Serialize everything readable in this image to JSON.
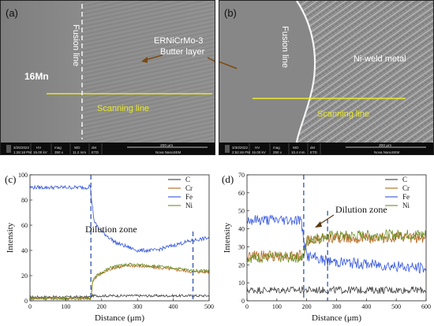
{
  "panels": {
    "a": {
      "label": "(a)",
      "annotations": {
        "fusion_line": "Fusion line",
        "filler_line1": "ERNiCrMo-3",
        "filler_line2": "Butter layer",
        "base_metal": "16Mn",
        "scanning_line": "Scanning line"
      },
      "databar": {
        "date": "3/25/2022",
        "time": "1:28:18 PM",
        "hv_label": "HV",
        "hv": "15.00 kV",
        "mag_label": "mag",
        "mag": "350 x",
        "wd_label": "WD",
        "wd": "11.2 mm",
        "det_label": "det",
        "det": "ETD",
        "scalebar": "200 μm",
        "instrument": "Nova NanoSEM"
      }
    },
    "b": {
      "label": "(b)",
      "annotations": {
        "fusion_line": "Fusion line",
        "weld_metal": "Ni-weld metal",
        "scanning_line": "Scanning line"
      },
      "databar": {
        "date": "3/30/2022",
        "time": "2:52:46 PM",
        "hv_label": "HV",
        "hv": "15.00 kV",
        "mag_label": "mag",
        "mag": "250 x",
        "wd_label": "WD",
        "wd": "10.4 mm",
        "det_label": "det",
        "det": "ETD",
        "scalebar": "300 μm",
        "instrument": "Nova NanoSEM"
      }
    }
  },
  "chart_data": [
    {
      "panel": "(c)",
      "type": "line",
      "xlabel": "Distance (μm)",
      "ylabel": "Intensity",
      "xlim": [
        0,
        500
      ],
      "ylim": [
        0,
        100
      ],
      "xticks": [
        0,
        100,
        200,
        300,
        400,
        500
      ],
      "yticks": [
        0,
        20,
        40,
        60,
        80,
        100
      ],
      "annotation": "Dilution zone",
      "dashed_lines_x": [
        170,
        455
      ],
      "legend": [
        "C",
        "Cr",
        "Fe",
        "Ni"
      ],
      "legend_placement": "top-right",
      "colors": {
        "C": "#404040",
        "Cr": "#b5651d",
        "Fe": "#3355dd",
        "Ni": "#6b8e23"
      },
      "series": [
        {
          "name": "C",
          "x": [
            0,
            170,
            171,
            500
          ],
          "y": [
            3,
            3,
            4,
            4
          ],
          "noise": 1
        },
        {
          "name": "Cr",
          "x": [
            0,
            170,
            175,
            190,
            230,
            280,
            330,
            400,
            455,
            500
          ],
          "y": [
            2,
            2,
            15,
            20,
            26,
            28,
            27,
            25,
            23,
            23
          ],
          "noise": 1.2
        },
        {
          "name": "Fe",
          "x": [
            0,
            160,
            168,
            172,
            180,
            200,
            240,
            300,
            350,
            400,
            455,
            500
          ],
          "y": [
            90,
            90,
            92,
            80,
            62,
            55,
            46,
            40,
            40,
            44,
            48,
            50
          ],
          "noise": 1.5
        },
        {
          "name": "Ni",
          "x": [
            0,
            170,
            175,
            190,
            230,
            280,
            330,
            400,
            455,
            500
          ],
          "y": [
            2,
            2,
            16,
            21,
            27,
            29,
            28,
            26,
            24,
            24
          ],
          "noise": 1.2
        }
      ]
    },
    {
      "panel": "(d)",
      "type": "line",
      "xlabel": "Distance (μm)",
      "ylabel": "Intensity",
      "xlim": [
        0,
        600
      ],
      "ylim": [
        0,
        70
      ],
      "xticks": [
        0,
        100,
        200,
        300,
        400,
        500,
        600
      ],
      "yticks": [
        0,
        10,
        20,
        30,
        40,
        50,
        60,
        70
      ],
      "annotation": "Dilution zone",
      "dashed_lines_x": [
        190,
        270
      ],
      "legend": [
        "C",
        "Cr",
        "Fe",
        "Ni"
      ],
      "legend_placement": "top-right",
      "colors": {
        "C": "#404040",
        "Cr": "#b5651d",
        "Fe": "#3355dd",
        "Ni": "#6b8e23"
      },
      "series": [
        {
          "name": "C",
          "x": [
            0,
            600
          ],
          "y": [
            6,
            6
          ],
          "noise": 2
        },
        {
          "name": "Cr",
          "x": [
            0,
            190,
            200,
            270,
            600
          ],
          "y": [
            25,
            25,
            33,
            35,
            35
          ],
          "noise": 3
        },
        {
          "name": "Fe",
          "x": [
            0,
            180,
            190,
            200,
            270,
            600
          ],
          "y": [
            45,
            45,
            35,
            25,
            22,
            18
          ],
          "noise": 3
        },
        {
          "name": "Ni",
          "x": [
            0,
            190,
            200,
            270,
            600
          ],
          "y": [
            24,
            24,
            34,
            36,
            37
          ],
          "noise": 3
        }
      ]
    }
  ]
}
